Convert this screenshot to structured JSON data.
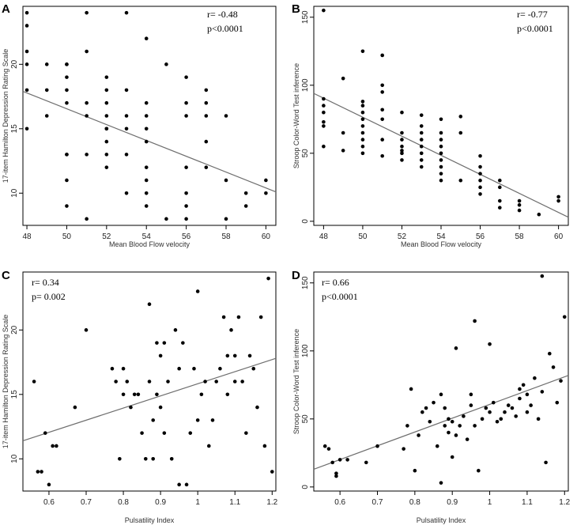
{
  "chart_data": [
    {
      "type": "scatter",
      "panel": "A",
      "xlabel": "Mean Blood Flow velocity",
      "ylabel": "17-item Hamilton Depression Rating Scale",
      "xlim": [
        47.8,
        60.5
      ],
      "ylim": [
        7.5,
        24.5
      ],
      "xticks": [
        48,
        50,
        52,
        54,
        56,
        58,
        60
      ],
      "yticks": [
        10,
        15,
        20
      ],
      "annotations": [
        "r= -0.48",
        "p<0.0001"
      ],
      "fit_line": {
        "x": [
          47.8,
          60.5
        ],
        "y": [
          17.9,
          10.1
        ]
      },
      "x": [
        48,
        48,
        48,
        48,
        48,
        48,
        49,
        49,
        49,
        50,
        50,
        50,
        50,
        50,
        50,
        50,
        50,
        50,
        51,
        51,
        51,
        51,
        51,
        51,
        52,
        52,
        52,
        52,
        52,
        52,
        52,
        52,
        52,
        53,
        53,
        53,
        53,
        53,
        53,
        54,
        54,
        54,
        54,
        54,
        54,
        54,
        54,
        54,
        55,
        55,
        56,
        56,
        56,
        56,
        56,
        56,
        56,
        57,
        57,
        57,
        57,
        57,
        58,
        58,
        58,
        59,
        59,
        60,
        60
      ],
      "y": [
        15,
        18,
        20,
        21,
        23,
        24,
        16,
        18,
        20,
        9,
        11,
        13,
        17,
        18,
        19,
        20,
        20,
        13,
        8,
        13,
        17,
        21,
        24,
        16,
        12,
        13,
        14,
        15,
        15,
        16,
        17,
        18,
        19,
        10,
        13,
        15,
        16,
        18,
        24,
        9,
        10,
        11,
        12,
        14,
        15,
        16,
        17,
        22,
        8,
        20,
        8,
        9,
        10,
        12,
        16,
        17,
        19,
        12,
        14,
        17,
        18,
        16,
        8,
        11,
        16,
        9,
        10,
        10,
        11
      ]
    },
    {
      "type": "scatter",
      "panel": "B",
      "xlabel": "Mean Blood Flow velocity",
      "ylabel": "Stroop Color-Word Test inference",
      "xlim": [
        47.5,
        60.5
      ],
      "ylim": [
        -3,
        158
      ],
      "xticks": [
        48,
        50,
        52,
        54,
        56,
        58,
        60
      ],
      "yticks": [
        0,
        50,
        100,
        150
      ],
      "annotations": [
        "r= -0.77",
        "p<0.0001"
      ],
      "fit_line": {
        "x": [
          47.5,
          60.5
        ],
        "y": [
          94,
          3
        ]
      },
      "x": [
        48,
        48,
        48,
        48,
        48,
        48,
        48,
        49,
        49,
        49,
        50,
        50,
        50,
        50,
        50,
        50,
        50,
        50,
        50,
        50,
        51,
        51,
        51,
        51,
        51,
        51,
        51,
        52,
        52,
        52,
        52,
        52,
        52,
        52,
        53,
        53,
        53,
        53,
        53,
        53,
        53,
        53,
        54,
        54,
        54,
        54,
        54,
        54,
        54,
        54,
        54,
        55,
        55,
        55,
        56,
        56,
        56,
        56,
        56,
        56,
        57,
        57,
        57,
        57,
        58,
        58,
        58,
        59,
        60,
        60
      ],
      "y": [
        55,
        70,
        73,
        80,
        85,
        90,
        155,
        52,
        65,
        105,
        50,
        55,
        60,
        65,
        70,
        75,
        80,
        85,
        88,
        125,
        48,
        60,
        75,
        82,
        95,
        100,
        122,
        45,
        50,
        52,
        55,
        60,
        65,
        80,
        40,
        45,
        50,
        55,
        60,
        65,
        70,
        78,
        30,
        35,
        40,
        45,
        50,
        55,
        60,
        65,
        75,
        30,
        65,
        77,
        20,
        25,
        30,
        35,
        40,
        48,
        10,
        15,
        25,
        30,
        8,
        12,
        15,
        5,
        15,
        18
      ]
    },
    {
      "type": "scatter",
      "panel": "C",
      "xlabel": "Pulsatility Index",
      "ylabel": "17-item Hamilton Depression Rating Scale",
      "xlim": [
        0.53,
        1.21
      ],
      "ylim": [
        7.5,
        24.5
      ],
      "xticks": [
        0.6,
        0.7,
        0.8,
        0.9,
        1.0,
        1.1,
        1.2
      ],
      "yticks": [
        10,
        15,
        20
      ],
      "annotations": [
        "r= 0.34",
        "p= 0.002"
      ],
      "fit_line": {
        "x": [
          0.53,
          1.21
        ],
        "y": [
          11.4,
          17.8
        ]
      },
      "x": [
        0.56,
        0.57,
        0.58,
        0.59,
        0.6,
        0.61,
        0.62,
        0.67,
        0.7,
        0.77,
        0.78,
        0.79,
        0.8,
        0.8,
        0.81,
        0.82,
        0.83,
        0.84,
        0.85,
        0.86,
        0.87,
        0.87,
        0.88,
        0.88,
        0.89,
        0.89,
        0.9,
        0.9,
        0.91,
        0.91,
        0.92,
        0.93,
        0.94,
        0.95,
        0.95,
        0.96,
        0.97,
        0.98,
        0.99,
        1.0,
        1.0,
        1.01,
        1.02,
        1.03,
        1.04,
        1.05,
        1.06,
        1.07,
        1.08,
        1.08,
        1.09,
        1.1,
        1.1,
        1.11,
        1.12,
        1.13,
        1.14,
        1.15,
        1.16,
        1.17,
        1.18,
        1.19,
        1.2
      ],
      "y": [
        16,
        9,
        9,
        12,
        8,
        11,
        11,
        14,
        20,
        17,
        16,
        10,
        15,
        17,
        16,
        14,
        15,
        15,
        12,
        10,
        16,
        22,
        10,
        13,
        19,
        15,
        18,
        14,
        19,
        12,
        16,
        10,
        20,
        8,
        17,
        19,
        8,
        12,
        17,
        13,
        23,
        15,
        16,
        11,
        13,
        16,
        17,
        21,
        18,
        15,
        20,
        16,
        18,
        21,
        16,
        12,
        18,
        17,
        14,
        21,
        11,
        24,
        9
      ]
    },
    {
      "type": "scatter",
      "panel": "D",
      "xlabel": "Pulsatility Index",
      "ylabel": "Stroop Color-Word Test inference",
      "xlim": [
        0.53,
        1.21
      ],
      "ylim": [
        -3,
        158
      ],
      "xticks": [
        0.6,
        0.7,
        0.8,
        0.9,
        1.0,
        1.1,
        1.2
      ],
      "yticks": [
        0,
        50,
        100,
        150
      ],
      "annotations": [
        "r= 0.66",
        "p<0.0001"
      ],
      "fit_line": {
        "x": [
          0.53,
          1.21
        ],
        "y": [
          13,
          82
        ]
      },
      "x": [
        0.56,
        0.57,
        0.58,
        0.59,
        0.59,
        0.6,
        0.62,
        0.67,
        0.7,
        0.77,
        0.78,
        0.79,
        0.8,
        0.81,
        0.82,
        0.83,
        0.84,
        0.85,
        0.86,
        0.87,
        0.87,
        0.88,
        0.88,
        0.89,
        0.89,
        0.9,
        0.9,
        0.91,
        0.91,
        0.92,
        0.93,
        0.94,
        0.95,
        0.95,
        0.96,
        0.96,
        0.97,
        0.98,
        0.99,
        1.0,
        1.0,
        1.01,
        1.02,
        1.03,
        1.04,
        1.05,
        1.06,
        1.07,
        1.08,
        1.08,
        1.09,
        1.1,
        1.1,
        1.11,
        1.12,
        1.13,
        1.14,
        1.14,
        1.15,
        1.16,
        1.17,
        1.18,
        1.19,
        1.2
      ],
      "y": [
        30,
        28,
        18,
        10,
        8,
        20,
        20,
        18,
        30,
        28,
        45,
        72,
        12,
        38,
        55,
        58,
        48,
        62,
        30,
        3,
        68,
        45,
        58,
        40,
        50,
        48,
        22,
        102,
        38,
        45,
        52,
        35,
        60,
        68,
        45,
        122,
        12,
        50,
        58,
        55,
        105,
        62,
        48,
        50,
        55,
        60,
        58,
        52,
        65,
        72,
        75,
        68,
        55,
        60,
        80,
        50,
        70,
        155,
        18,
        98,
        88,
        62,
        78,
        125
      ]
    }
  ]
}
